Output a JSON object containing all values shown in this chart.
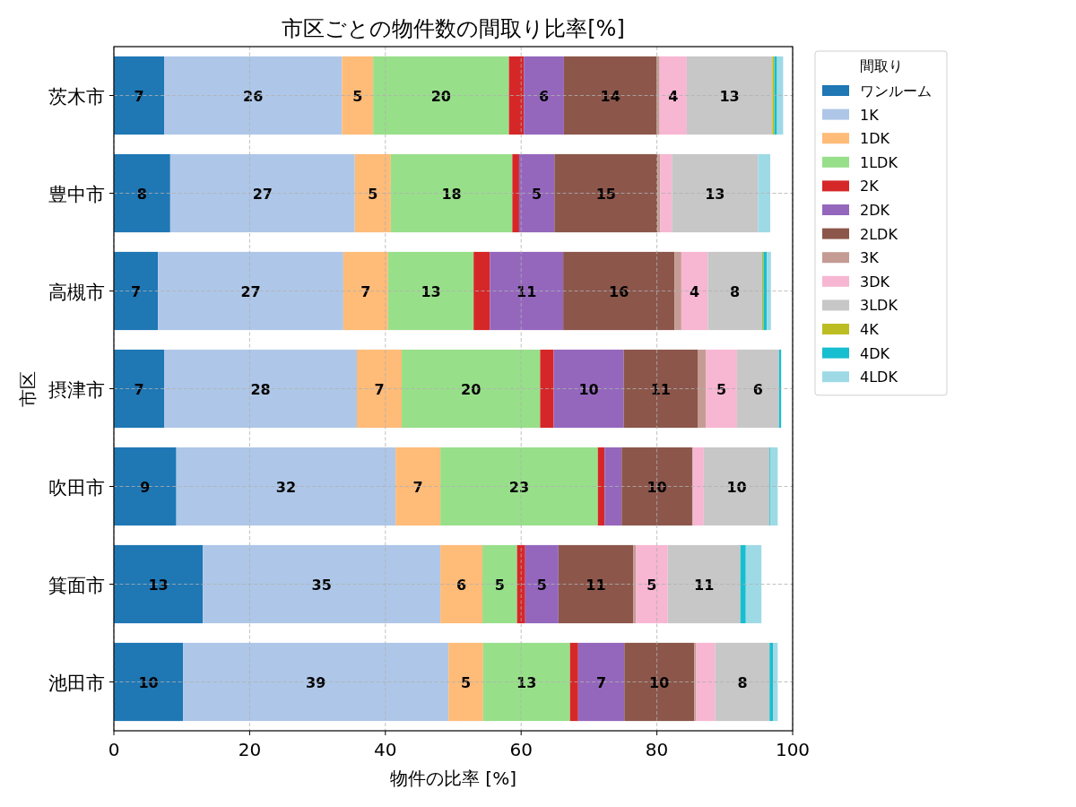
{
  "chart_data": {
    "type": "bar",
    "orientation": "horizontal",
    "stacked": true,
    "title": "市区ごとの物件数の間取り比率[%]",
    "xlabel": "物件の比率 [%]",
    "ylabel": "市区",
    "legend_title": "間取り",
    "legend": "right",
    "grid": true,
    "xlim": [
      0,
      100
    ],
    "xticks": [
      0,
      20,
      40,
      60,
      80,
      100
    ],
    "categories": [
      "茨木市",
      "豊中市",
      "高槻市",
      "摂津市",
      "吹田市",
      "箕面市",
      "池田市"
    ],
    "series": [
      {
        "name": "ワンルーム",
        "color": "#1f77b4",
        "values": [
          7.4,
          8.3,
          6.5,
          7.4,
          9.2,
          13.1,
          10.2
        ],
        "value_labels": [
          "7",
          "8",
          "7",
          "7",
          "9",
          "13",
          "10"
        ]
      },
      {
        "name": "1K",
        "color": "#aec7e8",
        "values": [
          26.2,
          27.2,
          27.3,
          28.4,
          32.3,
          35.0,
          39.1
        ],
        "value_labels": [
          "26",
          "27",
          "27",
          "28",
          "32",
          "35",
          "39"
        ]
      },
      {
        "name": "1DK",
        "color": "#ffbb78",
        "values": [
          4.6,
          5.3,
          6.6,
          6.6,
          6.6,
          6.2,
          5.1
        ],
        "value_labels": [
          "5",
          "5",
          "7",
          "7",
          "7",
          "6",
          "5"
        ]
      },
      {
        "name": "1LDK",
        "color": "#98df8a",
        "values": [
          20.0,
          17.9,
          12.6,
          20.4,
          23.2,
          5.1,
          12.8
        ],
        "value_labels": [
          "20",
          "18",
          "13",
          "20",
          "23",
          "5",
          "13"
        ]
      },
      {
        "name": "2K",
        "color": "#d62728",
        "values": [
          2.2,
          1.0,
          2.4,
          2.0,
          1.0,
          1.2,
          1.2
        ]
      },
      {
        "name": "2DK",
        "color": "#9467bd",
        "values": [
          5.9,
          5.2,
          10.8,
          10.3,
          2.5,
          4.9,
          6.8
        ],
        "value_labels": [
          "6",
          "5",
          "11",
          "10",
          null,
          "5",
          "7"
        ]
      },
      {
        "name": "2LDK",
        "color": "#8c564b",
        "values": [
          13.7,
          15.2,
          16.4,
          10.9,
          10.4,
          11.0,
          10.3
        ],
        "value_labels": [
          "14",
          "15",
          "16",
          "11",
          "10",
          "11",
          "10"
        ]
      },
      {
        "name": "3K",
        "color": "#c49c94",
        "values": [
          0.4,
          0.4,
          1.0,
          1.2,
          0.1,
          0.4,
          0.3
        ]
      },
      {
        "name": "3DK",
        "color": "#f7b6d2",
        "values": [
          4.0,
          1.7,
          3.9,
          4.6,
          1.6,
          4.7,
          2.8
        ],
        "value_labels": [
          "4",
          null,
          "4",
          "5",
          null,
          "5",
          null
        ]
      },
      {
        "name": "3LDK",
        "color": "#c7c7c7",
        "values": [
          12.6,
          12.7,
          8.0,
          6.2,
          9.7,
          10.7,
          8.0
        ],
        "value_labels": [
          "13",
          "13",
          "8",
          "6",
          "10",
          "11",
          "8"
        ]
      },
      {
        "name": "4K",
        "color": "#bcbd22",
        "values": [
          0.3,
          0,
          0.2,
          0,
          0,
          0,
          0
        ]
      },
      {
        "name": "4DK",
        "color": "#17becf",
        "values": [
          0.4,
          0,
          0.5,
          0.3,
          0.1,
          0.8,
          0.5
        ]
      },
      {
        "name": "4LDK",
        "color": "#9edae5",
        "values": [
          0.9,
          1.8,
          0.6,
          0,
          1.1,
          2.3,
          0.7
        ]
      }
    ]
  }
}
